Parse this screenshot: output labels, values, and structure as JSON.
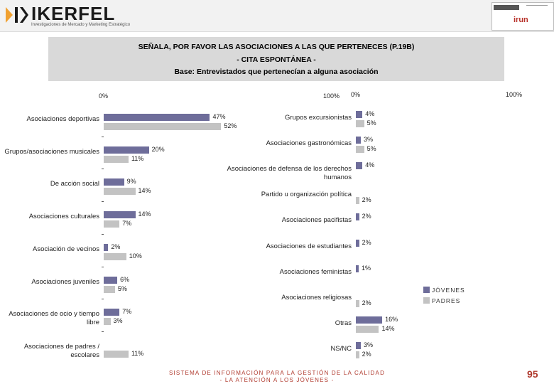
{
  "header": {
    "brand": "IKERFEL",
    "brand_sub": "Investigaciones de Mercado y Marketing Estratégico",
    "partner": "irun"
  },
  "title": {
    "line1": "SEÑALA, POR FAVOR LAS ASOCIACIONES A LAS QUE PERTENECES (P.19B)",
    "line2": "- CITA ESPONTÁNEA -",
    "line3": "Base: Entrevistados que pertenecían a alguna asociación"
  },
  "legend": {
    "jovenes": "JÓVENES",
    "padres": "PADRES"
  },
  "colors": {
    "jovenes": "#6e6d9a",
    "padres": "#c3c3c3",
    "accent": "#b03a2e"
  },
  "footer": {
    "line1": "SISTEMA DE INFORMACIÓN PARA LA GESTIÓN DE LA CALIDAD",
    "line2": "- LA ATENCIÓN A LOS JÓVENES -"
  },
  "page_number": "95",
  "chart_data": [
    {
      "type": "bar",
      "orientation": "horizontal",
      "axis_min_label": "0%",
      "axis_max_label": "100%",
      "xlim": [
        0,
        100
      ],
      "categories": [
        "Asociaciones deportivas",
        "Grupos/asociaciones musicales",
        "De acción social",
        "Asociaciones culturales",
        "Asociación de vecinos",
        "Asociaciones juveniles",
        "Asociaciones de ocio y tiempo libre",
        "Asociaciones de padres / escolares"
      ],
      "series": [
        {
          "name": "JÓVENES",
          "values": [
            47,
            20,
            9,
            14,
            2,
            6,
            7,
            null
          ],
          "labels": [
            "47%",
            "20%",
            "9%",
            "14%",
            "2%",
            "6%",
            "7%",
            ""
          ]
        },
        {
          "name": "PADRES",
          "values": [
            52,
            11,
            14,
            7,
            10,
            5,
            3,
            11
          ],
          "labels": [
            "52%",
            "11%",
            "14%",
            "7%",
            "10%",
            "5%",
            "3%",
            "11%"
          ]
        }
      ]
    },
    {
      "type": "bar",
      "orientation": "horizontal",
      "axis_min_label": "0%",
      "axis_max_label": "100%",
      "xlim": [
        0,
        100
      ],
      "categories": [
        "Grupos excursionistas",
        "Asociaciones gastronómicas",
        "Asociaciones de defensa de los derechos humanos",
        "Partido u organización política",
        "Asociaciones pacifistas",
        "Asociaciones de estudiantes",
        "Asociaciones feministas",
        "Asociaciones religiosas",
        "Otras",
        "NS/NC"
      ],
      "series": [
        {
          "name": "JÓVENES",
          "values": [
            4,
            3,
            4,
            null,
            2,
            2,
            1,
            null,
            16,
            3
          ],
          "labels": [
            "4%",
            "3%",
            "4%",
            "",
            "2%",
            "2%",
            "1%",
            "",
            "16%",
            "3%"
          ]
        },
        {
          "name": "PADRES",
          "values": [
            5,
            5,
            null,
            2,
            null,
            null,
            null,
            2,
            14,
            2
          ],
          "labels": [
            "5%",
            "5%",
            "",
            "2%",
            "",
            "",
            "",
            "2%",
            "14%",
            "2%"
          ]
        }
      ]
    }
  ]
}
